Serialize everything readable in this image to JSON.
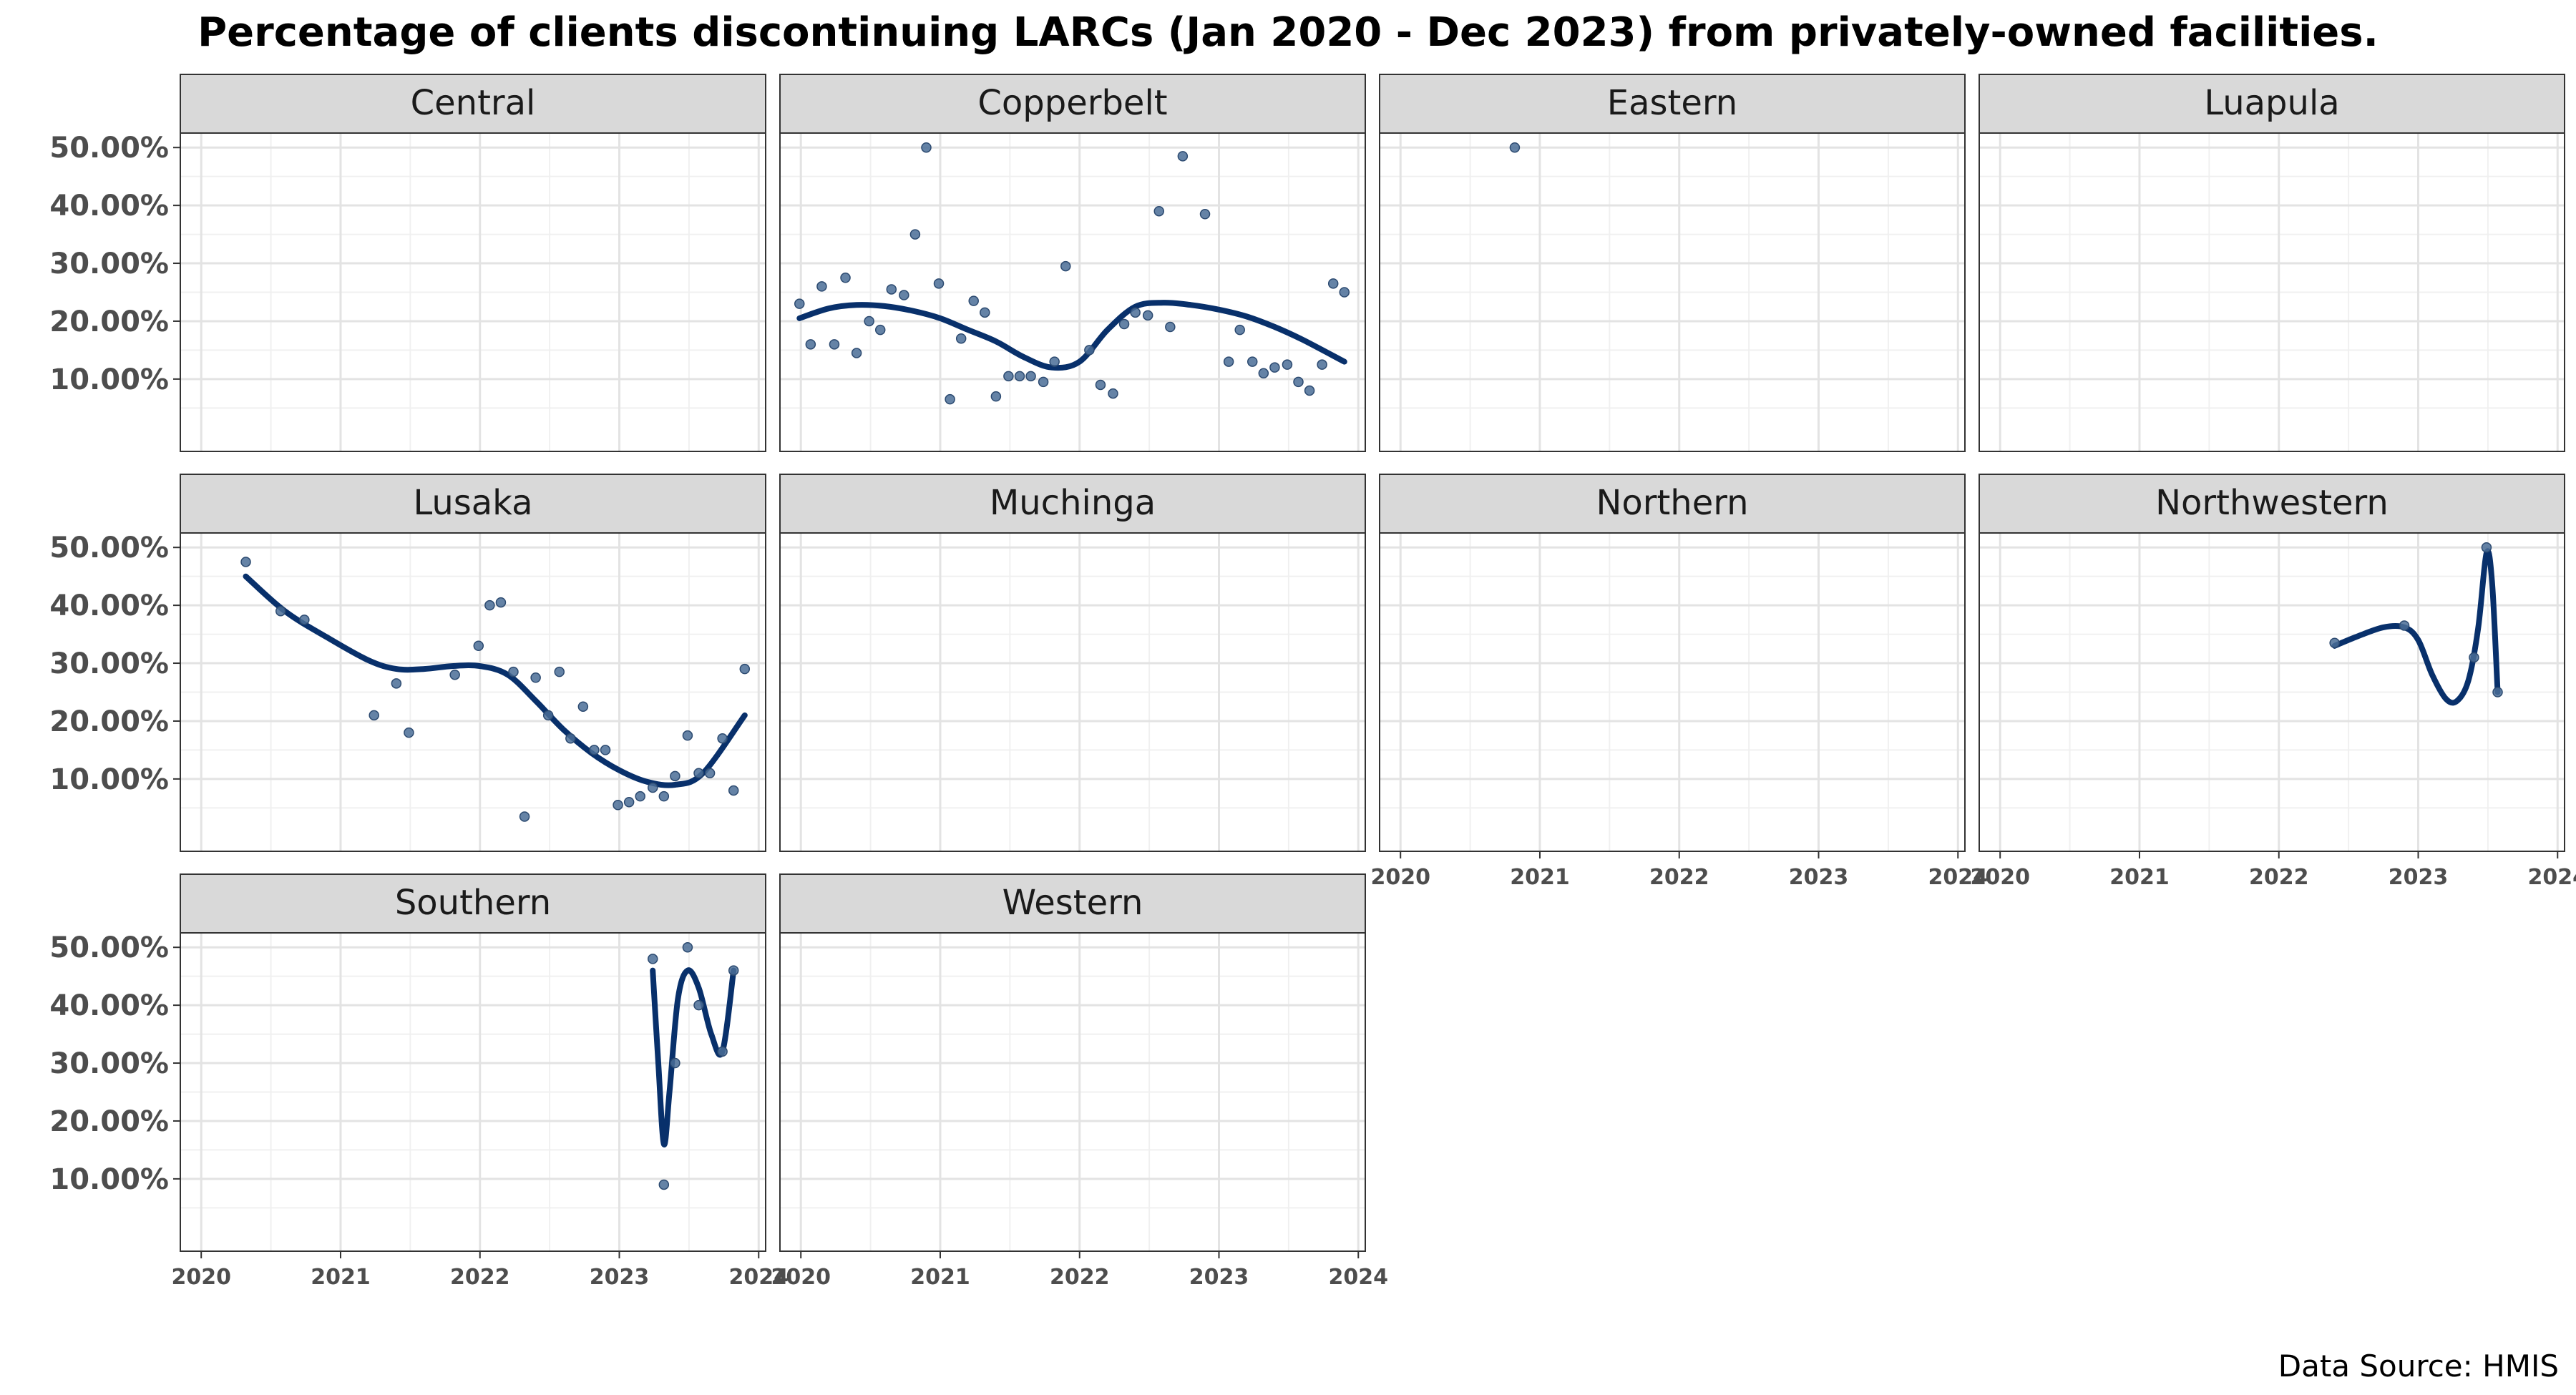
{
  "chart_data": {
    "type": "scatter",
    "title": "Percentage of clients discontinuing LARCs (Jan 2020 - Dec 2023) from privately-owned facilities.",
    "caption": "Data Source: HMIS",
    "xlabel": "",
    "ylabel": "",
    "x_ticks": [
      "2020",
      "2021",
      "2022",
      "2023",
      "2024"
    ],
    "y_ticks": [
      "10.00%",
      "20.00%",
      "30.00%",
      "40.00%",
      "50.00%"
    ],
    "xlim": [
      2019.85,
      2024.05
    ],
    "ylim": [
      -0.025,
      0.525
    ],
    "grid": true,
    "facet_layout": "4 columns x 3 rows",
    "point_color": "#4a6d96",
    "line_color": "#08306b",
    "strip_fill": "#d9d9d9",
    "panels": [
      {
        "name": "Central",
        "points": [],
        "smooth": []
      },
      {
        "name": "Copperbelt",
        "points": [
          [
            2019.99,
            0.23
          ],
          [
            2020.07,
            0.16
          ],
          [
            2020.15,
            0.26
          ],
          [
            2020.24,
            0.16
          ],
          [
            2020.32,
            0.275
          ],
          [
            2020.4,
            0.145
          ],
          [
            2020.49,
            0.2
          ],
          [
            2020.57,
            0.185
          ],
          [
            2020.65,
            0.255
          ],
          [
            2020.74,
            0.245
          ],
          [
            2020.82,
            0.35
          ],
          [
            2020.9,
            0.5
          ],
          [
            2020.99,
            0.265
          ],
          [
            2021.07,
            0.065
          ],
          [
            2021.15,
            0.17
          ],
          [
            2021.24,
            0.235
          ],
          [
            2021.32,
            0.215
          ],
          [
            2021.4,
            0.07
          ],
          [
            2021.49,
            0.105
          ],
          [
            2021.57,
            0.105
          ],
          [
            2021.65,
            0.105
          ],
          [
            2021.74,
            0.095
          ],
          [
            2021.82,
            0.13
          ],
          [
            2021.9,
            0.295
          ],
          [
            2022.07,
            0.15
          ],
          [
            2022.15,
            0.09
          ],
          [
            2022.24,
            0.075
          ],
          [
            2022.32,
            0.195
          ],
          [
            2022.4,
            0.215
          ],
          [
            2022.49,
            0.21
          ],
          [
            2022.57,
            0.39
          ],
          [
            2022.65,
            0.19
          ],
          [
            2022.74,
            0.485
          ],
          [
            2022.9,
            0.385
          ],
          [
            2023.07,
            0.13
          ],
          [
            2023.15,
            0.185
          ],
          [
            2023.24,
            0.13
          ],
          [
            2023.32,
            0.11
          ],
          [
            2023.4,
            0.12
          ],
          [
            2023.49,
            0.125
          ],
          [
            2023.57,
            0.095
          ],
          [
            2023.65,
            0.08
          ],
          [
            2023.74,
            0.125
          ],
          [
            2023.82,
            0.265
          ],
          [
            2023.9,
            0.25
          ]
        ],
        "smooth": [
          [
            2019.99,
            0.205
          ],
          [
            2020.2,
            0.222
          ],
          [
            2020.4,
            0.228
          ],
          [
            2020.6,
            0.226
          ],
          [
            2020.8,
            0.218
          ],
          [
            2021.0,
            0.205
          ],
          [
            2021.2,
            0.185
          ],
          [
            2021.4,
            0.165
          ],
          [
            2021.6,
            0.138
          ],
          [
            2021.8,
            0.12
          ],
          [
            2022.0,
            0.13
          ],
          [
            2022.2,
            0.185
          ],
          [
            2022.4,
            0.225
          ],
          [
            2022.6,
            0.232
          ],
          [
            2022.8,
            0.228
          ],
          [
            2023.0,
            0.22
          ],
          [
            2023.2,
            0.208
          ],
          [
            2023.4,
            0.19
          ],
          [
            2023.6,
            0.168
          ],
          [
            2023.9,
            0.13
          ]
        ]
      },
      {
        "name": "Eastern",
        "points": [
          [
            2020.82,
            0.5
          ]
        ],
        "smooth": []
      },
      {
        "name": "Luapula",
        "points": [],
        "smooth": []
      },
      {
        "name": "Lusaka",
        "points": [
          [
            2020.32,
            0.475
          ],
          [
            2020.57,
            0.39
          ],
          [
            2020.74,
            0.375
          ],
          [
            2021.24,
            0.21
          ],
          [
            2021.4,
            0.265
          ],
          [
            2021.49,
            0.18
          ],
          [
            2021.82,
            0.28
          ],
          [
            2021.99,
            0.33
          ],
          [
            2022.07,
            0.4
          ],
          [
            2022.15,
            0.405
          ],
          [
            2022.24,
            0.285
          ],
          [
            2022.32,
            0.035
          ],
          [
            2022.4,
            0.275
          ],
          [
            2022.49,
            0.21
          ],
          [
            2022.57,
            0.285
          ],
          [
            2022.65,
            0.17
          ],
          [
            2022.74,
            0.225
          ],
          [
            2022.82,
            0.15
          ],
          [
            2022.9,
            0.15
          ],
          [
            2022.99,
            0.055
          ],
          [
            2023.07,
            0.06
          ],
          [
            2023.15,
            0.07
          ],
          [
            2023.24,
            0.085
          ],
          [
            2023.32,
            0.07
          ],
          [
            2023.4,
            0.105
          ],
          [
            2023.49,
            0.175
          ],
          [
            2023.57,
            0.11
          ],
          [
            2023.65,
            0.11
          ],
          [
            2023.74,
            0.17
          ],
          [
            2023.82,
            0.08
          ],
          [
            2023.9,
            0.29
          ]
        ],
        "smooth": [
          [
            2020.32,
            0.45
          ],
          [
            2020.6,
            0.39
          ],
          [
            2020.9,
            0.345
          ],
          [
            2021.2,
            0.305
          ],
          [
            2021.4,
            0.29
          ],
          [
            2021.6,
            0.29
          ],
          [
            2021.8,
            0.295
          ],
          [
            2022.0,
            0.295
          ],
          [
            2022.2,
            0.28
          ],
          [
            2022.4,
            0.235
          ],
          [
            2022.6,
            0.185
          ],
          [
            2022.8,
            0.145
          ],
          [
            2023.0,
            0.115
          ],
          [
            2023.2,
            0.095
          ],
          [
            2023.4,
            0.09
          ],
          [
            2023.6,
            0.11
          ],
          [
            2023.9,
            0.21
          ]
        ]
      },
      {
        "name": "Muchinga",
        "points": [],
        "smooth": []
      },
      {
        "name": "Northern",
        "points": [],
        "smooth": []
      },
      {
        "name": "Northwestern",
        "points": [
          [
            2022.4,
            0.335
          ],
          [
            2022.9,
            0.365
          ],
          [
            2023.4,
            0.31
          ],
          [
            2023.49,
            0.5
          ],
          [
            2023.57,
            0.25
          ]
        ],
        "smooth": [
          [
            2022.4,
            0.33
          ],
          [
            2022.55,
            0.345
          ],
          [
            2022.75,
            0.362
          ],
          [
            2022.9,
            0.362
          ],
          [
            2023.0,
            0.34
          ],
          [
            2023.1,
            0.28
          ],
          [
            2023.2,
            0.238
          ],
          [
            2023.28,
            0.235
          ],
          [
            2023.36,
            0.27
          ],
          [
            2023.43,
            0.36
          ],
          [
            2023.49,
            0.49
          ],
          [
            2023.53,
            0.44
          ],
          [
            2023.57,
            0.25
          ]
        ]
      },
      {
        "name": "Southern",
        "points": [
          [
            2023.24,
            0.48
          ],
          [
            2023.32,
            0.09
          ],
          [
            2023.4,
            0.3
          ],
          [
            2023.49,
            0.5
          ],
          [
            2023.57,
            0.4
          ],
          [
            2023.74,
            0.32
          ],
          [
            2023.82,
            0.46
          ]
        ],
        "smooth": [
          [
            2023.24,
            0.46
          ],
          [
            2023.28,
            0.3
          ],
          [
            2023.32,
            0.16
          ],
          [
            2023.36,
            0.25
          ],
          [
            2023.42,
            0.41
          ],
          [
            2023.49,
            0.46
          ],
          [
            2023.57,
            0.43
          ],
          [
            2023.66,
            0.35
          ],
          [
            2023.74,
            0.32
          ],
          [
            2023.82,
            0.46
          ]
        ]
      },
      {
        "name": "Western",
        "points": [],
        "smooth": []
      }
    ]
  }
}
